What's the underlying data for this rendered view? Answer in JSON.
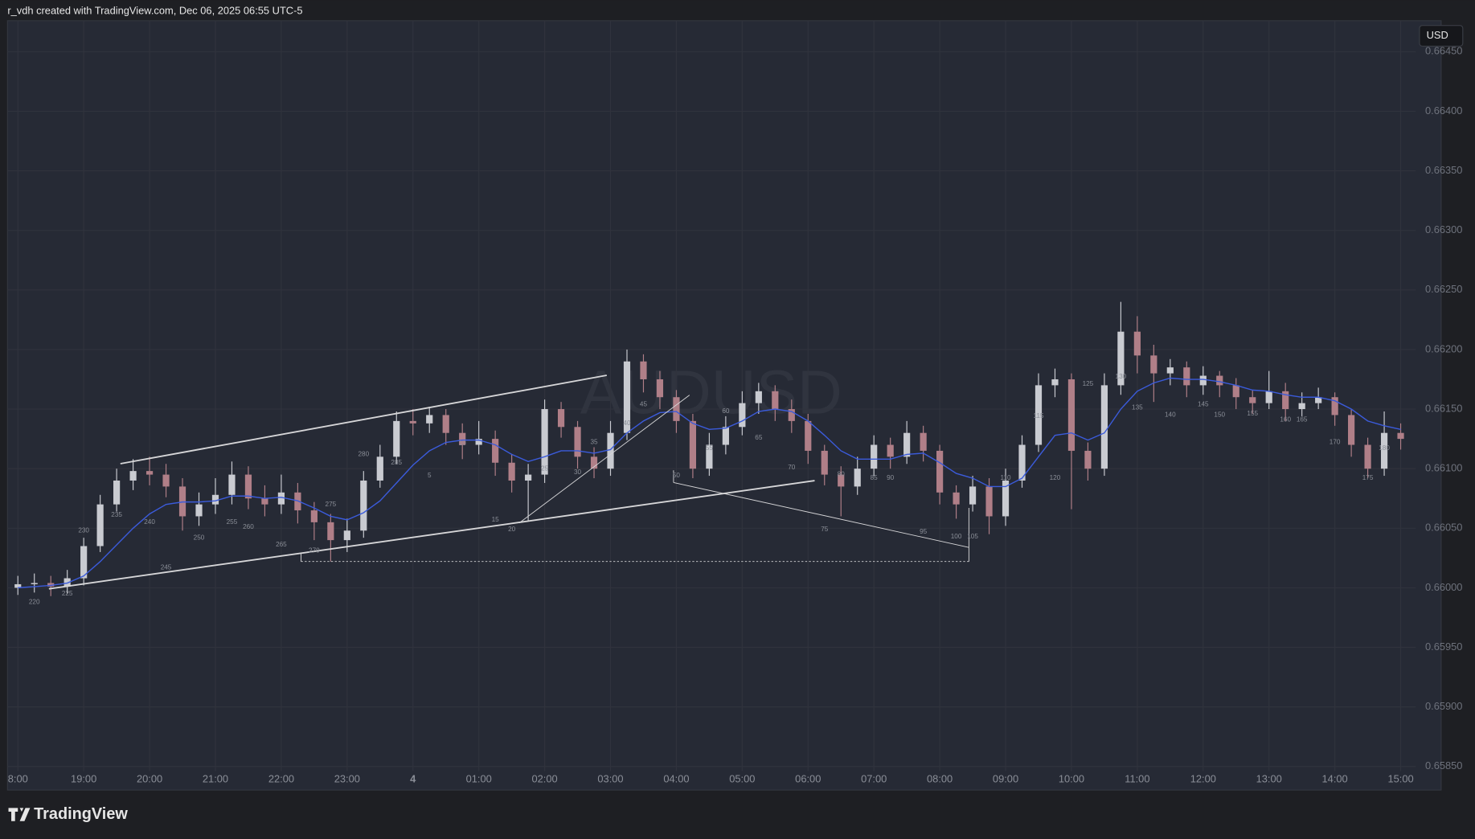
{
  "chart_data": {
    "type": "candlestick",
    "header": "r_vdh created with TradingView.com, Dec 06, 2025 06:55 UTC-5",
    "watermark": "AUDUSD",
    "currency": "USD",
    "brand": "TradingView",
    "categories": [
      "18:00",
      "18:15",
      "18:30",
      "18:45",
      "19:00",
      "19:15",
      "19:30",
      "19:45",
      "20:00",
      "20:15",
      "20:30",
      "20:45",
      "21:00",
      "21:15",
      "21:30",
      "21:45",
      "22:00",
      "22:15",
      "22:30",
      "22:45",
      "23:00",
      "23:15",
      "23:30",
      "23:45",
      "00:00",
      "00:15",
      "00:30",
      "00:45",
      "01:00",
      "01:15",
      "01:30",
      "01:45",
      "02:00",
      "02:15",
      "02:30",
      "02:45",
      "03:00",
      "03:15",
      "03:30",
      "03:45",
      "04:00",
      "04:15",
      "04:30",
      "04:45",
      "05:00",
      "05:15",
      "05:30",
      "05:45",
      "06:00",
      "06:15",
      "06:30",
      "06:45",
      "07:00",
      "07:15",
      "07:30",
      "07:45",
      "08:00",
      "08:15",
      "08:30",
      "08:45",
      "09:00",
      "09:15",
      "09:30",
      "09:45",
      "10:00",
      "10:15",
      "10:30",
      "10:45",
      "11:00",
      "11:15",
      "11:30",
      "11:45",
      "12:00",
      "12:15",
      "12:30",
      "12:45",
      "13:00",
      "13:15",
      "13:30",
      "13:45",
      "14:00",
      "14:15",
      "14:30",
      "14:45",
      "15:00"
    ],
    "open": [
      0.66,
      0.66003,
      0.66004,
      0.66001,
      0.66008,
      0.66035,
      0.6607,
      0.6609,
      0.66098,
      0.66095,
      0.66085,
      0.6606,
      0.6607,
      0.66078,
      0.66095,
      0.66075,
      0.6607,
      0.6608,
      0.66065,
      0.66055,
      0.6604,
      0.66048,
      0.6609,
      0.6611,
      0.6614,
      0.66138,
      0.66145,
      0.6613,
      0.6612,
      0.66125,
      0.66105,
      0.6609,
      0.66095,
      0.6615,
      0.66135,
      0.6611,
      0.661,
      0.6613,
      0.6619,
      0.66175,
      0.6616,
      0.6614,
      0.661,
      0.6612,
      0.66135,
      0.66155,
      0.66165,
      0.6615,
      0.6614,
      0.66115,
      0.66095,
      0.66085,
      0.661,
      0.6612,
      0.6611,
      0.6613,
      0.66115,
      0.6608,
      0.6607,
      0.66085,
      0.6606,
      0.6609,
      0.6612,
      0.6617,
      0.66175,
      0.66115,
      0.661,
      0.6617,
      0.66215,
      0.66195,
      0.6618,
      0.66185,
      0.6617,
      0.66178,
      0.6617,
      0.6616,
      0.66155,
      0.66165,
      0.6615,
      0.66155,
      0.6616,
      0.66145,
      0.6612,
      0.661,
      0.6613
    ],
    "high": [
      0.6601,
      0.66012,
      0.6601,
      0.66015,
      0.66042,
      0.66078,
      0.661,
      0.66108,
      0.6611,
      0.66104,
      0.66092,
      0.6608,
      0.66092,
      0.66106,
      0.66102,
      0.66086,
      0.66095,
      0.66088,
      0.66072,
      0.66062,
      0.66058,
      0.66098,
      0.6612,
      0.66148,
      0.6615,
      0.66152,
      0.6615,
      0.66138,
      0.6614,
      0.66132,
      0.66112,
      0.66104,
      0.66158,
      0.66156,
      0.6614,
      0.66118,
      0.6614,
      0.662,
      0.66196,
      0.66182,
      0.66166,
      0.66146,
      0.6613,
      0.66144,
      0.66165,
      0.66172,
      0.6617,
      0.66158,
      0.66146,
      0.6612,
      0.66102,
      0.6611,
      0.66128,
      0.66126,
      0.6614,
      0.66136,
      0.6612,
      0.66086,
      0.66094,
      0.66092,
      0.661,
      0.66128,
      0.6618,
      0.66184,
      0.6618,
      0.66122,
      0.6618,
      0.6624,
      0.66228,
      0.66204,
      0.66192,
      0.6619,
      0.66186,
      0.66182,
      0.66176,
      0.66166,
      0.66182,
      0.66172,
      0.66164,
      0.66168,
      0.66164,
      0.6615,
      0.66126,
      0.66148,
      0.66138
    ],
    "low": [
      0.65994,
      0.65996,
      0.65993,
      0.65995,
      0.66002,
      0.6603,
      0.66064,
      0.66082,
      0.66086,
      0.66076,
      0.66048,
      0.66052,
      0.66062,
      0.6607,
      0.66066,
      0.6606,
      0.66062,
      0.66054,
      0.6604,
      0.66022,
      0.6603,
      0.66042,
      0.66084,
      0.66104,
      0.66128,
      0.6613,
      0.6612,
      0.66108,
      0.66112,
      0.66094,
      0.6608,
      0.66056,
      0.66088,
      0.66126,
      0.661,
      0.66092,
      0.66094,
      0.66124,
      0.66164,
      0.6615,
      0.6613,
      0.66092,
      0.66094,
      0.66112,
      0.66128,
      0.66146,
      0.6614,
      0.6613,
      0.66104,
      0.66086,
      0.6606,
      0.66078,
      0.66094,
      0.661,
      0.66104,
      0.66106,
      0.6607,
      0.66058,
      0.66064,
      0.66045,
      0.66052,
      0.66084,
      0.66114,
      0.6616,
      0.66066,
      0.6609,
      0.66094,
      0.66162,
      0.6618,
      0.66156,
      0.6617,
      0.6616,
      0.66162,
      0.6616,
      0.6615,
      0.66146,
      0.6615,
      0.6614,
      0.66144,
      0.6615,
      0.66136,
      0.6611,
      0.66092,
      0.66094,
      0.66116
    ],
    "close": [
      0.66003,
      0.66004,
      0.66001,
      0.66008,
      0.66035,
      0.6607,
      0.6609,
      0.66098,
      0.66095,
      0.66085,
      0.6606,
      0.6607,
      0.66078,
      0.66095,
      0.66075,
      0.6607,
      0.6608,
      0.66065,
      0.66055,
      0.6604,
      0.66048,
      0.6609,
      0.6611,
      0.6614,
      0.66138,
      0.66145,
      0.6613,
      0.6612,
      0.66125,
      0.66105,
      0.6609,
      0.66095,
      0.6615,
      0.66135,
      0.6611,
      0.661,
      0.6613,
      0.6619,
      0.66175,
      0.6616,
      0.6614,
      0.661,
      0.6612,
      0.66135,
      0.66155,
      0.66165,
      0.6615,
      0.6614,
      0.66115,
      0.66095,
      0.66085,
      0.661,
      0.6612,
      0.6611,
      0.6613,
      0.66115,
      0.6608,
      0.6607,
      0.66085,
      0.6606,
      0.6609,
      0.6612,
      0.6617,
      0.66175,
      0.66115,
      0.661,
      0.6617,
      0.66215,
      0.66195,
      0.6618,
      0.66185,
      0.6617,
      0.66178,
      0.6617,
      0.6616,
      0.66155,
      0.66165,
      0.6615,
      0.66155,
      0.6616,
      0.66145,
      0.6612,
      0.661,
      0.6613,
      0.66125
    ],
    "up_color": "#c9cbd1",
    "down_color": "#b07f88",
    "ma": {
      "color": "#3b5bdb",
      "values": [
        0.66,
        0.66001,
        0.66002,
        0.66004,
        0.6601,
        0.66022,
        0.66036,
        0.6605,
        0.66062,
        0.6607,
        0.66072,
        0.66072,
        0.66073,
        0.66077,
        0.66077,
        0.66075,
        0.66076,
        0.66073,
        0.66067,
        0.6606,
        0.66057,
        0.66063,
        0.66073,
        0.66088,
        0.66103,
        0.66115,
        0.66122,
        0.66124,
        0.66124,
        0.6612,
        0.66112,
        0.66106,
        0.6611,
        0.66115,
        0.66115,
        0.66113,
        0.66116,
        0.6613,
        0.6614,
        0.66147,
        0.66148,
        0.66138,
        0.66133,
        0.66134,
        0.6614,
        0.66148,
        0.6615,
        0.66148,
        0.6614,
        0.66128,
        0.66115,
        0.66108,
        0.66108,
        0.66108,
        0.66112,
        0.66113,
        0.66105,
        0.66096,
        0.66092,
        0.66085,
        0.66085,
        0.66092,
        0.6611,
        0.66128,
        0.6613,
        0.66124,
        0.6613,
        0.6615,
        0.66165,
        0.66172,
        0.66176,
        0.66175,
        0.66175,
        0.66173,
        0.6617,
        0.66166,
        0.66165,
        0.66162,
        0.6616,
        0.6616,
        0.66157,
        0.6615,
        0.6614,
        0.66136,
        0.66133
      ]
    },
    "bar_labels": [
      {
        "label": "220",
        "x": "18:15",
        "y": 0.65988
      },
      {
        "label": "225",
        "x": "18:45",
        "y": 0.65995
      },
      {
        "label": "230",
        "x": "19:00",
        "y": 0.66048
      },
      {
        "label": "235",
        "x": "19:30",
        "y": 0.66061
      },
      {
        "label": "240",
        "x": "20:00",
        "y": 0.66055
      },
      {
        "label": "245",
        "x": "20:15",
        "y": 0.66017
      },
      {
        "label": "250",
        "x": "20:45",
        "y": 0.66042
      },
      {
        "label": "255",
        "x": "21:15",
        "y": 0.66055
      },
      {
        "label": "260",
        "x": "21:30",
        "y": 0.66051
      },
      {
        "label": "265",
        "x": "22:00",
        "y": 0.66036
      },
      {
        "label": "270",
        "x": "22:30",
        "y": 0.66031
      },
      {
        "label": "275",
        "x": "22:45",
        "y": 0.6607
      },
      {
        "label": "280",
        "x": "23:15",
        "y": 0.66112
      },
      {
        "label": "285",
        "x": "23:45",
        "y": 0.66105
      },
      {
        "label": "5",
        "x": "00:15",
        "y": 0.66094
      },
      {
        "label": "10",
        "x": "00:45",
        "y": 0.66121
      },
      {
        "label": "15",
        "x": "01:15",
        "y": 0.66057
      },
      {
        "label": "20",
        "x": "01:30",
        "y": 0.66049
      },
      {
        "label": "25",
        "x": "02:00",
        "y": 0.661
      },
      {
        "label": "30",
        "x": "02:30",
        "y": 0.66097
      },
      {
        "label": "35",
        "x": "02:45",
        "y": 0.66122
      },
      {
        "label": "40",
        "x": "03:15",
        "y": 0.66138
      },
      {
        "label": "45",
        "x": "03:30",
        "y": 0.66154
      },
      {
        "label": "50",
        "x": "04:00",
        "y": 0.66094
      },
      {
        "label": "55",
        "x": "04:30",
        "y": 0.66117
      },
      {
        "label": "60",
        "x": "04:45",
        "y": 0.66148
      },
      {
        "label": "65",
        "x": "05:15",
        "y": 0.66126
      },
      {
        "label": "70",
        "x": "05:45",
        "y": 0.66101
      },
      {
        "label": "75",
        "x": "06:15",
        "y": 0.66049
      },
      {
        "label": "80",
        "x": "06:30",
        "y": 0.66095
      },
      {
        "label": "85",
        "x": "07:00",
        "y": 0.66092
      },
      {
        "label": "90",
        "x": "07:15",
        "y": 0.66092
      },
      {
        "label": "95",
        "x": "07:45",
        "y": 0.66047
      },
      {
        "label": "100",
        "x": "08:15",
        "y": 0.66043
      },
      {
        "label": "105",
        "x": "08:30",
        "y": 0.66043
      },
      {
        "label": "110",
        "x": "09:00",
        "y": 0.66092
      },
      {
        "label": "115",
        "x": "09:30",
        "y": 0.66144
      },
      {
        "label": "120",
        "x": "09:45",
        "y": 0.66092
      },
      {
        "label": "125",
        "x": "10:15",
        "y": 0.66171
      },
      {
        "label": "130",
        "x": "10:45",
        "y": 0.66177
      },
      {
        "label": "135",
        "x": "11:00",
        "y": 0.66151
      },
      {
        "label": "140",
        "x": "11:30",
        "y": 0.66145
      },
      {
        "label": "145",
        "x": "12:00",
        "y": 0.66154
      },
      {
        "label": "150",
        "x": "12:15",
        "y": 0.66145
      },
      {
        "label": "155",
        "x": "12:45",
        "y": 0.66146
      },
      {
        "label": "160",
        "x": "13:15",
        "y": 0.66141
      },
      {
        "label": "165",
        "x": "13:30",
        "y": 0.66141
      },
      {
        "label": "170",
        "x": "14:00",
        "y": 0.66122
      },
      {
        "label": "175",
        "x": "14:30",
        "y": 0.66092
      },
      {
        "label": "180",
        "x": "14:45",
        "y": 0.66117
      }
    ],
    "ylim": [
      0.65846,
      0.66476
    ],
    "yticks": [
      {
        "value": 0.6585,
        "label": "0.65850"
      },
      {
        "value": 0.659,
        "label": "0.65900"
      },
      {
        "value": 0.6595,
        "label": "0.65950"
      },
      {
        "value": 0.66,
        "label": "0.66000"
      },
      {
        "value": 0.6605,
        "label": "0.66050"
      },
      {
        "value": 0.661,
        "label": "0.66100"
      },
      {
        "value": 0.6615,
        "label": "0.66150"
      },
      {
        "value": 0.662,
        "label": "0.66200"
      },
      {
        "value": 0.6625,
        "label": "0.66250"
      },
      {
        "value": 0.663,
        "label": "0.66300"
      },
      {
        "value": 0.6635,
        "label": "0.66350"
      },
      {
        "value": 0.664,
        "label": "0.66400"
      },
      {
        "value": 0.6645,
        "label": "0.66450"
      }
    ],
    "xticks": [
      {
        "value": "18:00",
        "label": "8:00"
      },
      "19:00",
      "20:00",
      "21:00",
      "22:00",
      "23:00",
      {
        "value": "00:00",
        "label": "4"
      },
      "01:00",
      "02:00",
      "03:00",
      "04:00",
      "05:00",
      "06:00",
      "07:00",
      "08:00",
      "09:00",
      "10:00",
      "11:00",
      "12:00",
      "13:00",
      "14:00",
      "15:00"
    ],
    "grid": true
  }
}
